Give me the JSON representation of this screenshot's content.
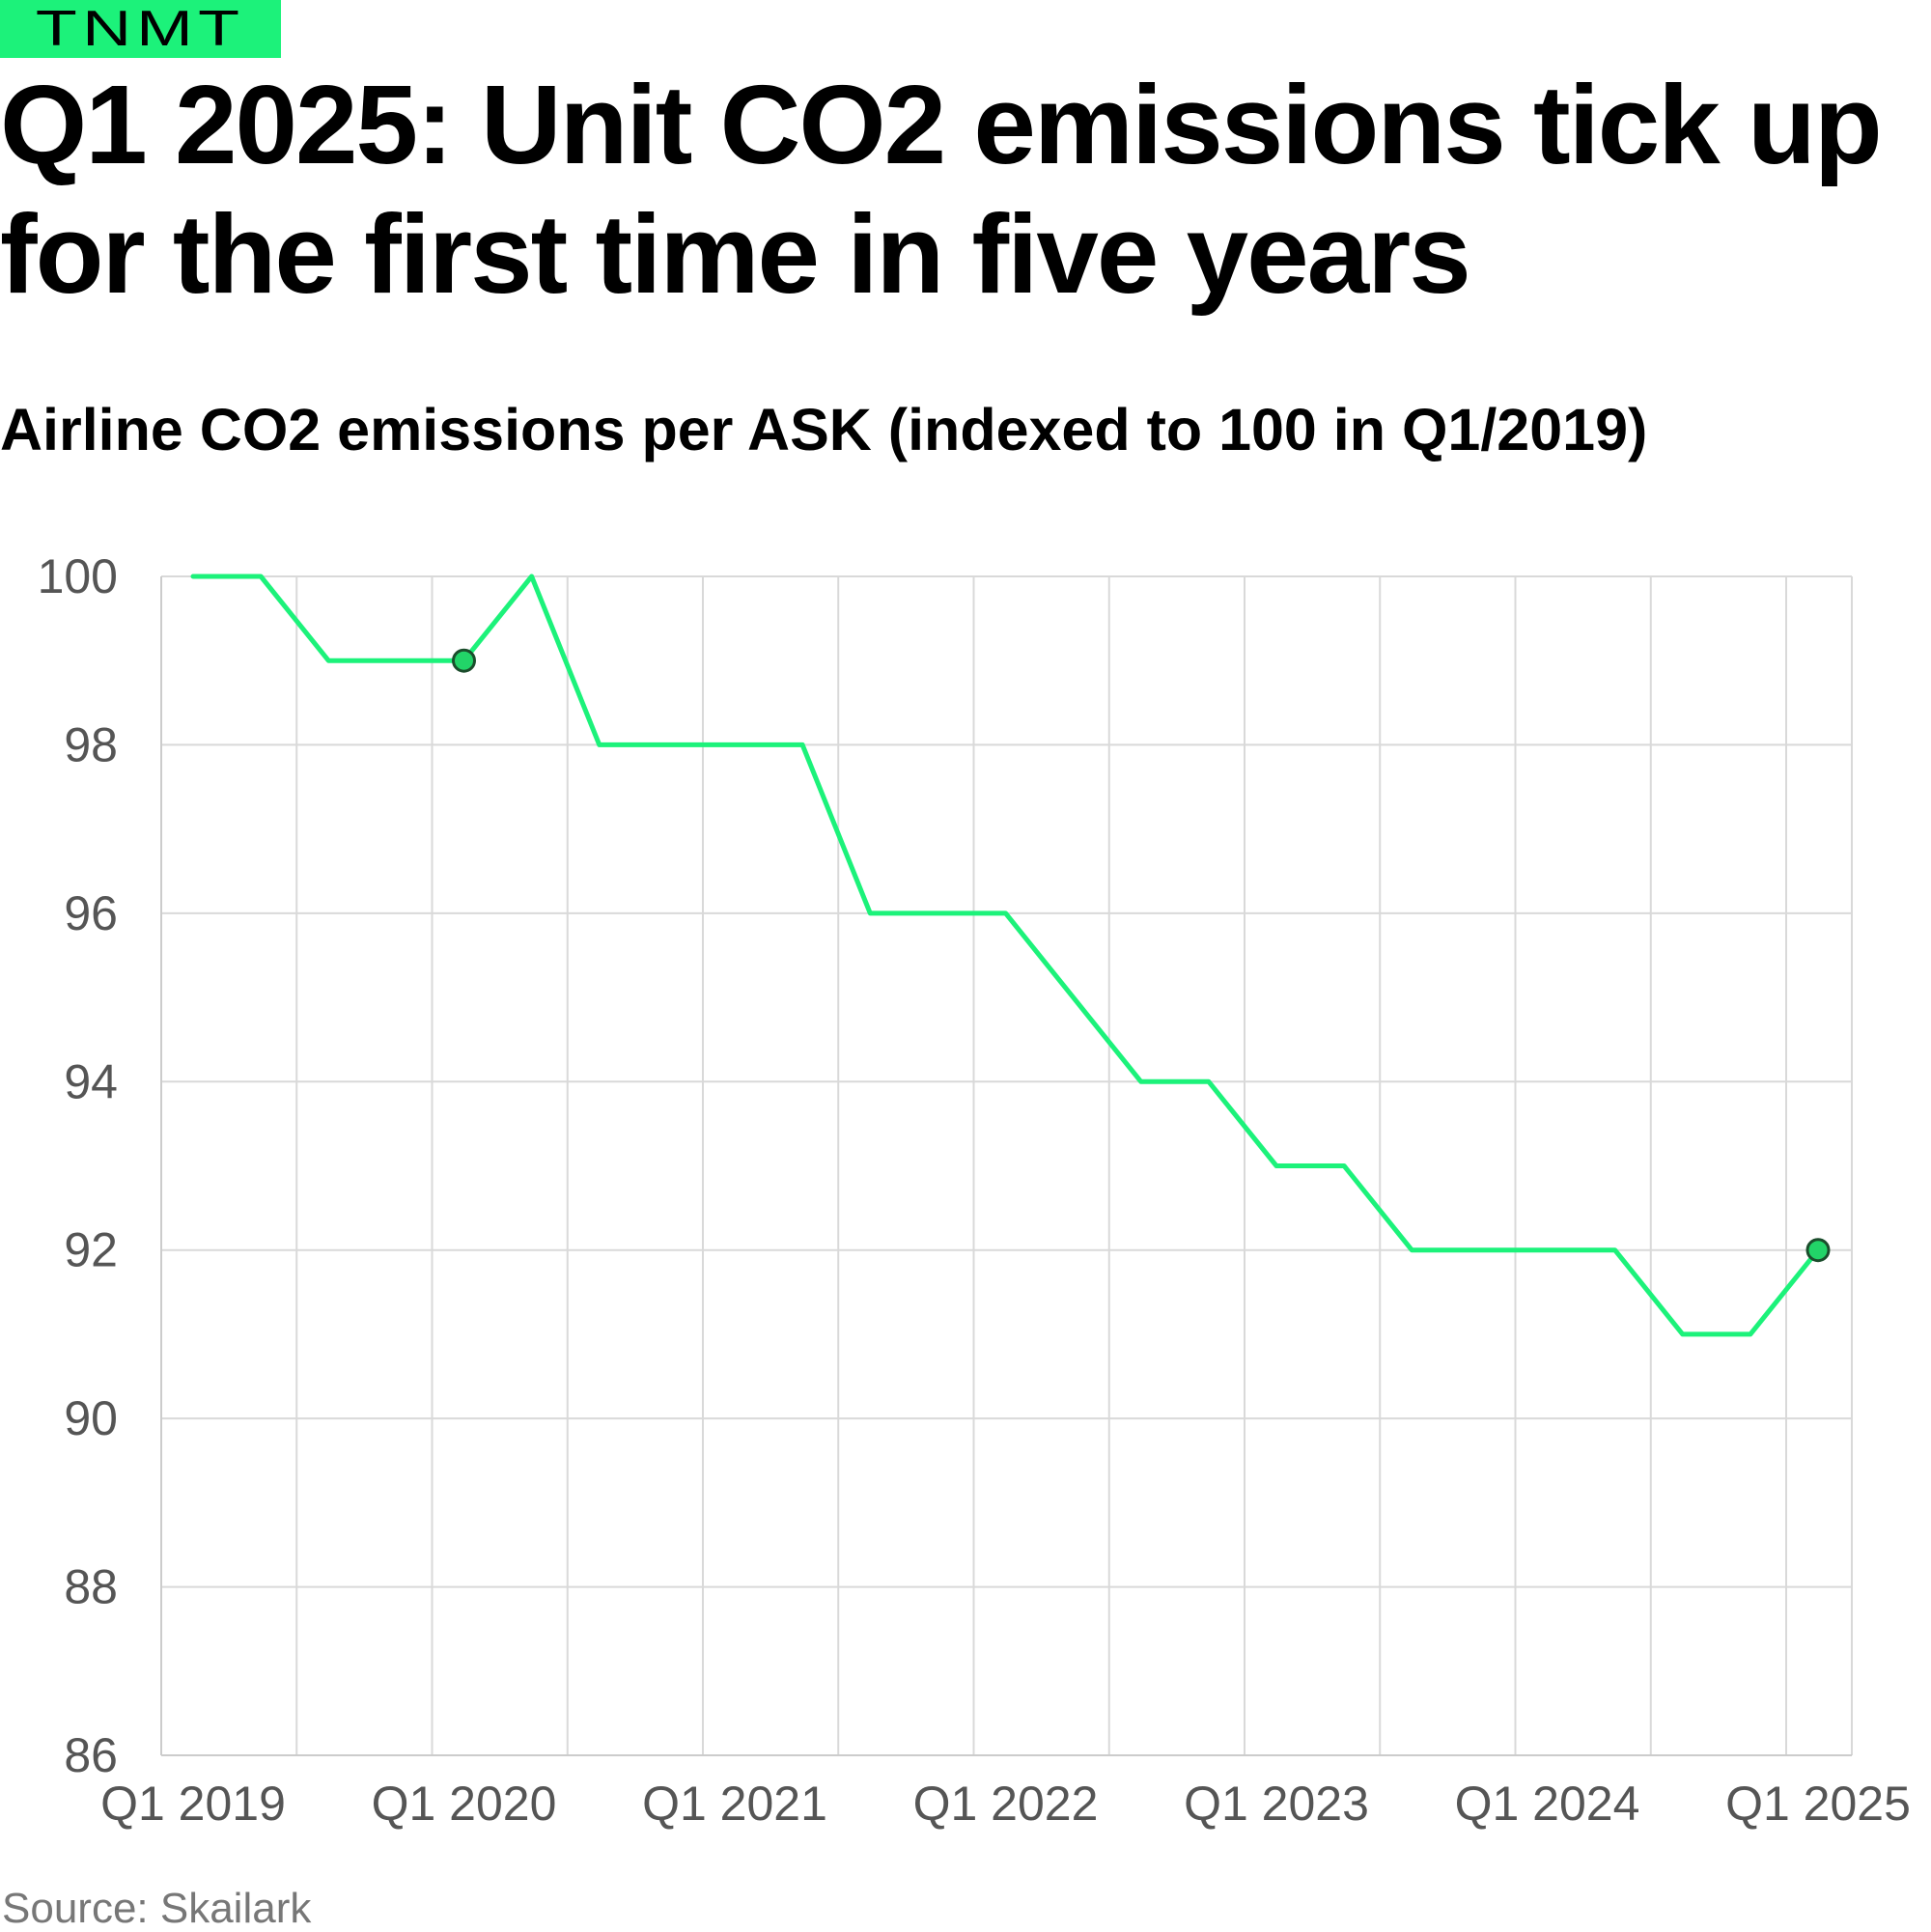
{
  "brand": {
    "label": "TNMT",
    "color": "#1cf27a"
  },
  "headline": "Q1 2025: Unit CO2 emissions tick up for the first time in five years",
  "subtitle": "Airline CO2 emissions per ASK (indexed to 100 in Q1/2019)",
  "source": "Source: Skailark",
  "chart_data": {
    "type": "line",
    "title": "Q1 2025: Unit CO2 emissions tick up for the first time in five years",
    "subtitle": "Airline CO2 emissions per ASK (indexed to 100 in Q1/2019)",
    "xlabel": "",
    "ylabel": "",
    "ylim": [
      86,
      100
    ],
    "y_ticks": [
      "100",
      "98",
      "96",
      "94",
      "92",
      "90",
      "88",
      "86"
    ],
    "x_tick_labels": [
      "Q1 2019",
      "Q1 2020",
      "Q1 2021",
      "Q1 2022",
      "Q1 2023",
      "Q1 2024",
      "Q1 2025"
    ],
    "x": [
      "Q1 2019",
      "Q2 2019",
      "Q3 2019",
      "Q4 2019",
      "Q1 2020",
      "Q2 2020",
      "Q3 2020",
      "Q4 2020",
      "Q1 2021",
      "Q2 2021",
      "Q3 2021",
      "Q4 2021",
      "Q1 2022",
      "Q2 2022",
      "Q3 2022",
      "Q4 2022",
      "Q1 2023",
      "Q2 2023",
      "Q3 2023",
      "Q4 2023",
      "Q1 2024",
      "Q2 2024",
      "Q3 2024",
      "Q4 2024",
      "Q1 2025"
    ],
    "series": [
      {
        "values": [
          100,
          100,
          99,
          99,
          99,
          100,
          98,
          98,
          98,
          98,
          96,
          96,
          96,
          95,
          94,
          94,
          93,
          93,
          92,
          92,
          92,
          92,
          91,
          91,
          92
        ]
      }
    ],
    "highlighted_points": [
      "Q1 2020",
      "Q1 2025"
    ],
    "line_color": "#1cf27a",
    "marker_color": "#22d468",
    "grid": true,
    "legend": "none"
  }
}
